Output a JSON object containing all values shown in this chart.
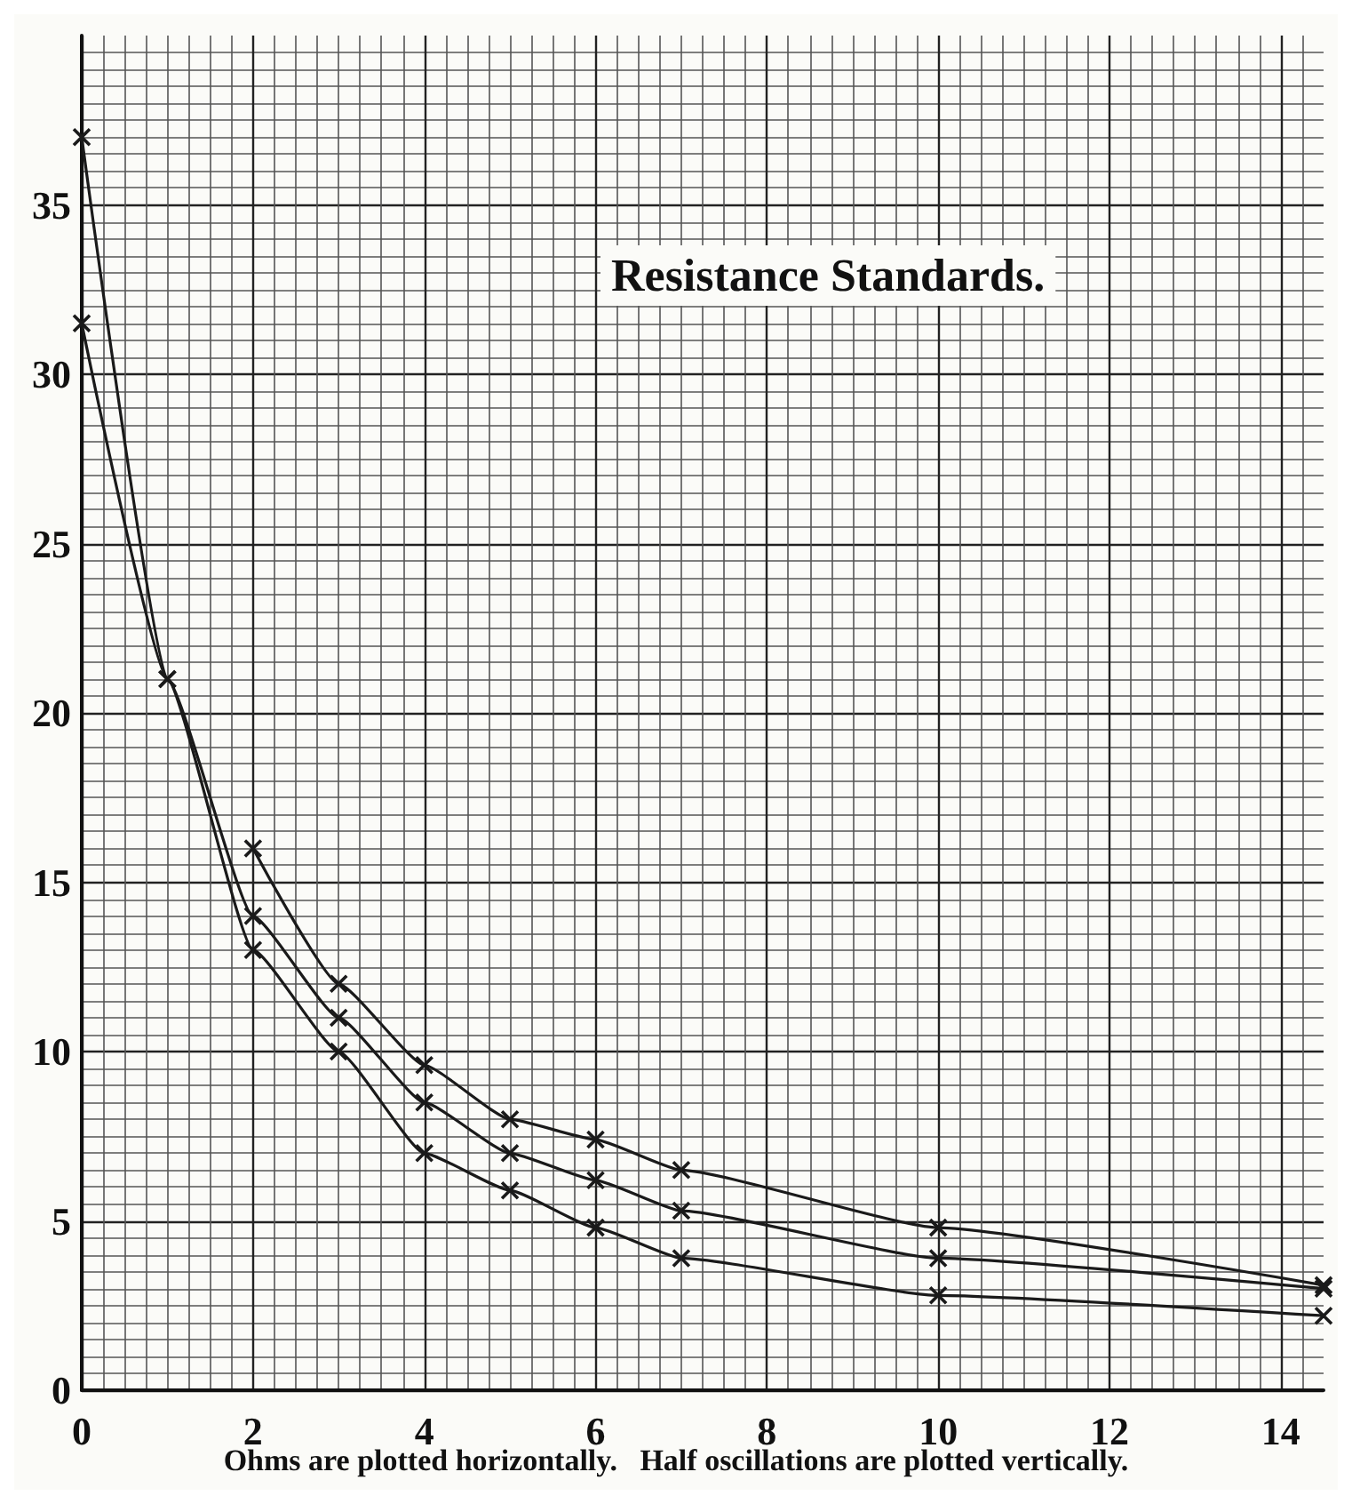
{
  "chart_data": {
    "type": "line",
    "title": "Resistance Standards.",
    "annotations": [
      "Ohms are plotted horizontally.   Half oscillations are plotted vertically."
    ],
    "series": [
      {
        "color": "#1a1a1a",
        "x": [
          2,
          3,
          4,
          5,
          6,
          7,
          10,
          14.5
        ],
        "values": [
          16,
          12,
          9.6,
          8,
          7.4,
          6.5,
          4.8,
          3.1
        ]
      },
      {
        "color": "#1a1a1a",
        "x": [
          0,
          1,
          2,
          3,
          4,
          5,
          6,
          7,
          10,
          14.5
        ],
        "values": [
          37,
          21,
          14,
          11,
          8.5,
          7,
          6.2,
          5.3,
          3.9,
          3
        ]
      },
      {
        "color": "#1a1a1a",
        "x": [
          0,
          1,
          2,
          3,
          4,
          5,
          6,
          7,
          10,
          14.5
        ],
        "values": [
          31.5,
          21,
          13,
          10,
          7,
          5.9,
          4.8,
          3.9,
          2.8,
          2.2
        ]
      }
    ],
    "xlim": [
      0,
      14.5
    ],
    "xticks": [
      0,
      2,
      4,
      6,
      8,
      10,
      12,
      14
    ],
    "ylim": [
      0,
      40
    ],
    "yticks": [
      0,
      5,
      10,
      15,
      20,
      25,
      30,
      35
    ],
    "grid": true,
    "marker": "cross",
    "line_style": "solid"
  }
}
